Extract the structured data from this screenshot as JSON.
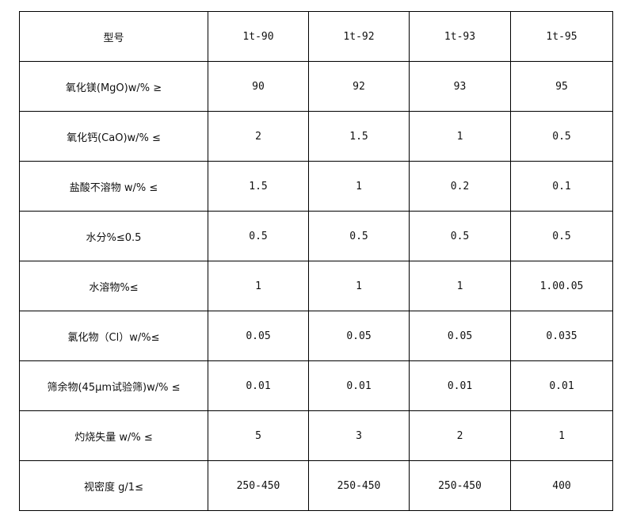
{
  "table": {
    "header": [
      "型号",
      "1t-90",
      "1t-92",
      "1t-93",
      "1t-95"
    ],
    "rows": [
      {
        "label": "氧化镁(MgO)w/% ≥",
        "values": [
          "90",
          "92",
          "93",
          "95"
        ]
      },
      {
        "label": "氧化钙(CaO)w/% ≤",
        "values": [
          "2",
          "1.5",
          "1",
          "0.5"
        ]
      },
      {
        "label": "盐酸不溶物 w/% ≤",
        "values": [
          "1.5",
          "1",
          "0.2",
          "0.1"
        ]
      },
      {
        "label": "水分%≤0.5",
        "values": [
          "0.5",
          "0.5",
          "0.5",
          "0.5"
        ]
      },
      {
        "label": "水溶物%≤",
        "values": [
          "1",
          "1",
          "1",
          "1.00.05"
        ]
      },
      {
        "label": "氯化物（Cl）w/%≤",
        "values": [
          "0.05",
          "0.05",
          "0.05",
          "0.035"
        ]
      },
      {
        "label": "筛余物(45μm试验筛)w/% ≤",
        "values": [
          "0.01",
          "0.01",
          "0.01",
          "0.01"
        ]
      },
      {
        "label": "灼烧失量 w/% ≤",
        "values": [
          "5",
          "3",
          "2",
          "1"
        ]
      },
      {
        "label": "视密度 g/1≤",
        "values": [
          "250-450",
          "250-450",
          "250-450",
          "400"
        ]
      }
    ]
  }
}
